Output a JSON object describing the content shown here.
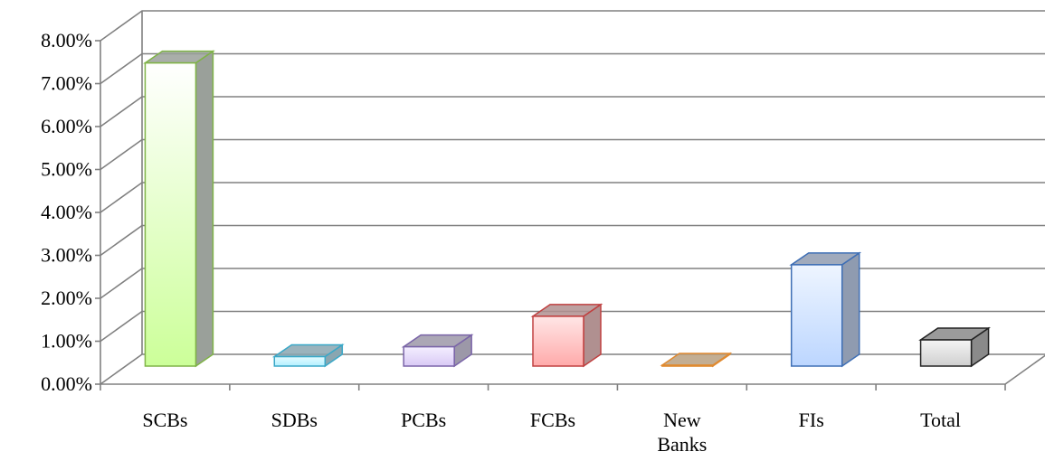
{
  "chart_data": {
    "type": "bar",
    "title": "",
    "xlabel": "",
    "ylabel": "",
    "categories": [
      "SCBs",
      "SDBs",
      "PCBs",
      "FCBs",
      "New Banks",
      "FIs",
      "Total"
    ],
    "category_lines": [
      [
        "SCBs"
      ],
      [
        "SDBs"
      ],
      [
        "PCBs"
      ],
      [
        "FCBs"
      ],
      [
        "New",
        "Banks"
      ],
      [
        "FIs"
      ],
      [
        "Total"
      ]
    ],
    "values": [
      7.06,
      0.22,
      0.45,
      1.16,
      0.02,
      2.36,
      0.61
    ],
    "value_format": "percent",
    "ylim": [
      0,
      8
    ],
    "yticks": [
      "0.00%",
      "1.00%",
      "2.00%",
      "3.00%",
      "4.00%",
      "5.00%",
      "6.00%",
      "7.00%",
      "8.00%"
    ],
    "grid": true,
    "legend": "none",
    "style": "3d-column",
    "colors": [
      {
        "fill_top": "#ffffff",
        "fill_bottom": "#ccff99",
        "edge": "#7fb347",
        "side": "#9aa09a"
      },
      {
        "fill_top": "#e6fbff",
        "fill_bottom": "#b3f0ff",
        "edge": "#3aa8c8",
        "side": "#8aa6b0"
      },
      {
        "fill_top": "#f4efff",
        "fill_bottom": "#d9c9f5",
        "edge": "#7a64a8",
        "side": "#9c98a8"
      },
      {
        "fill_top": "#ffe6e6",
        "fill_bottom": "#ffaaaa",
        "edge": "#c04040",
        "side": "#b09090"
      },
      {
        "fill_top": "#ffe9cc",
        "fill_bottom": "#ffc884",
        "edge": "#e08a30",
        "side": "#b8a080"
      },
      {
        "fill_top": "#eef5ff",
        "fill_bottom": "#bcd6ff",
        "edge": "#3f6fb5",
        "side": "#8f9bb0"
      },
      {
        "fill_top": "#f5f5f5",
        "fill_bottom": "#cfcfcf",
        "edge": "#222222",
        "side": "#8a8a8a"
      }
    ]
  }
}
